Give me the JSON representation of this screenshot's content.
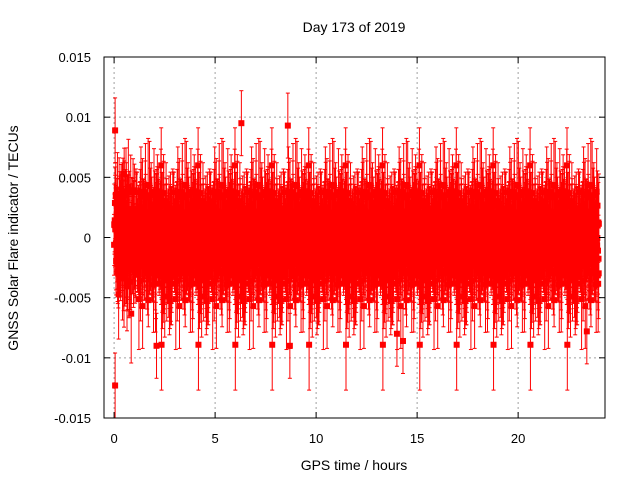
{
  "chart_data": {
    "type": "scatter",
    "title": "Day 173 of 2019",
    "xlabel": "GPS time / hours",
    "ylabel": "GNSS Solar Flare indicator / TECUs",
    "xlim": [
      -0.5,
      24.3
    ],
    "ylim": [
      -0.015,
      0.015
    ],
    "xticks": [
      0,
      5,
      10,
      15,
      20
    ],
    "xtick_labels": [
      "0",
      "5",
      "10",
      "15",
      "20"
    ],
    "yticks": [
      -0.015,
      -0.01,
      -0.005,
      0,
      0.005,
      0.01,
      0.015
    ],
    "ytick_labels": [
      "-0.015",
      "-0.01",
      "-0.005",
      "0",
      "0.005",
      "0.01",
      "0.015"
    ],
    "grid": true,
    "series": [
      {
        "name": "solar flare indicator",
        "color": "#ff0000",
        "marker": "square",
        "errorbars": true,
        "x_range": [
          0,
          24
        ],
        "sampling_interval_hours": 0.0083,
        "typical_spread": 0.005,
        "typical_error": 0.003,
        "outliers": [
          {
            "x": 0.05,
            "y": 0.0089
          },
          {
            "x": 0.05,
            "y": -0.0123
          },
          {
            "x": 2.1,
            "y": -0.009
          },
          {
            "x": 6.3,
            "y": 0.0095
          },
          {
            "x": 8.6,
            "y": 0.0093
          },
          {
            "x": 8.7,
            "y": -0.009
          },
          {
            "x": 14.3,
            "y": -0.0086
          },
          {
            "x": 14.0,
            "y": -0.008
          },
          {
            "x": 23.4,
            "y": -0.0078
          }
        ]
      }
    ]
  }
}
